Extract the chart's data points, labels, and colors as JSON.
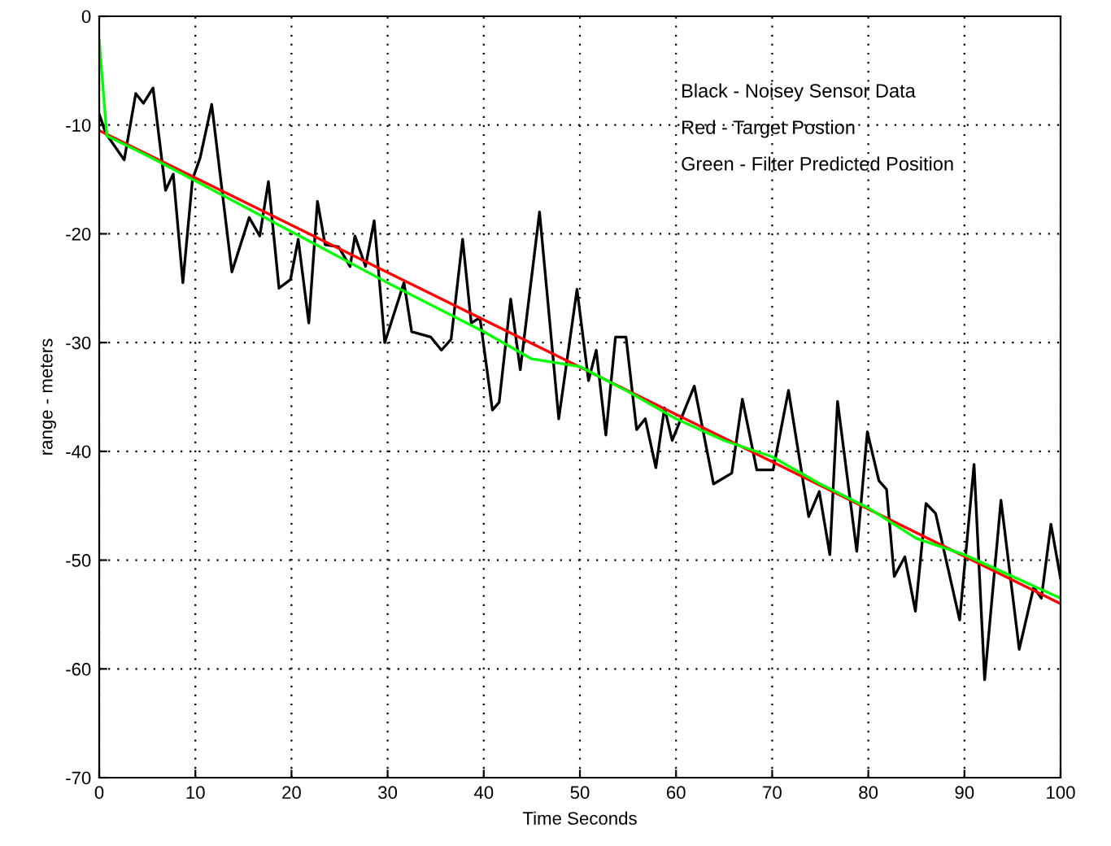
{
  "chart_data": {
    "type": "line",
    "xlabel": "Time Seconds",
    "ylabel": "range - meters",
    "annotations": [
      "Black - Noisey Sensor Data",
      "Red - Target Postion",
      "Green - Filter Predicted Position"
    ],
    "xlim": [
      0,
      100
    ],
    "ylim": [
      -70,
      0
    ],
    "xticks": [
      0,
      10,
      20,
      30,
      40,
      50,
      60,
      70,
      80,
      90,
      100
    ],
    "yticks": [
      -70,
      -60,
      -50,
      -40,
      -30,
      -20,
      -10,
      0
    ],
    "grid": true,
    "marker": "none",
    "line_style": "solid",
    "series": [
      {
        "color": "#000000",
        "x": [
          0,
          0.7,
          2.6,
          3.8,
          4.6,
          5.6,
          6.9,
          7.7,
          8.7,
          9.7,
          10.5,
          11.7,
          13.8,
          15.6,
          16.7,
          17.6,
          18.7,
          19.9,
          20.7,
          21.8,
          22.7,
          23.5,
          24.9,
          26.1,
          26.6,
          27.7,
          28.6,
          29.7,
          31.7,
          32.5,
          34.5,
          35.6,
          36.6,
          37.8,
          38.7,
          39.6,
          40.9,
          41.6,
          42.8,
          43.8,
          45.8,
          47.8,
          49.7,
          50.9,
          51.7,
          52.7,
          53.7,
          54.8,
          55.9,
          56.8,
          57.9,
          58.8,
          59.6,
          61.9,
          63.9,
          65.8,
          66.9,
          68.4,
          70.1,
          71.7,
          73.8,
          74.9,
          76,
          76.8,
          78.8,
          79.9,
          81.1,
          81.9,
          82.7,
          83.8,
          84.9,
          86,
          87,
          89.5,
          91,
          92.1,
          93.8,
          95.7,
          97.2,
          98,
          99,
          100
        ],
        "values": [
          -9,
          -10.8,
          -13.2,
          -7.1,
          -8,
          -6.6,
          -16,
          -14.5,
          -24.5,
          -15,
          -13,
          -8.1,
          -23.5,
          -18.5,
          -20.2,
          -15.2,
          -25,
          -24.2,
          -20.5,
          -28.2,
          -17,
          -21,
          -21.2,
          -23,
          -20.2,
          -23,
          -18.8,
          -30,
          -24.5,
          -29,
          -29.5,
          -30.7,
          -29.7,
          -20.5,
          -28.2,
          -27.7,
          -36.2,
          -35.5,
          -26,
          -32.5,
          -18,
          -37,
          -25.1,
          -33.5,
          -30.7,
          -38.5,
          -29.5,
          -29.5,
          -38,
          -37,
          -41.5,
          -36,
          -39,
          -34,
          -43,
          -42,
          -35.2,
          -41.7,
          -41.7,
          -34.4,
          -46,
          -43.7,
          -49.5,
          -35.4,
          -49.2,
          -38.2,
          -42.7,
          -43.5,
          -51.5,
          -49.7,
          -54.7,
          -44.8,
          -45.7,
          -55.5,
          -41.2,
          -61,
          -44.5,
          -58.2,
          -52.5,
          -53.5,
          -46.7,
          -51.7
        ]
      },
      {
        "color": "#ff0000",
        "x": [
          0,
          100
        ],
        "values": [
          -10.5,
          -54
        ]
      },
      {
        "color": "#00ff00",
        "x": [
          0,
          0.8,
          5,
          20,
          30,
          40,
          45,
          50,
          55,
          60,
          65,
          70,
          75,
          80,
          85,
          90,
          95,
          100
        ],
        "values": [
          -2.2,
          -11,
          -12.8,
          -19.8,
          -24.5,
          -29,
          -31.5,
          -32.2,
          -34.5,
          -37,
          -39,
          -40.5,
          -43,
          -45.2,
          -48,
          -49.5,
          -51.5,
          -53.5
        ]
      }
    ]
  }
}
